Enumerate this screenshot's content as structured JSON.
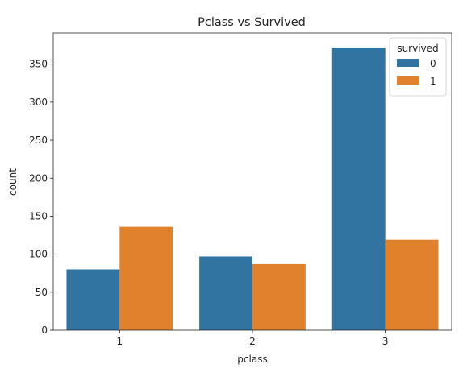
{
  "chart_data": {
    "type": "bar",
    "title": "Pclass vs Survived",
    "xlabel": "pclass",
    "ylabel": "count",
    "categories": [
      "1",
      "2",
      "3"
    ],
    "series": [
      {
        "name": "0",
        "values": [
          80,
          97,
          372
        ],
        "color": "#3274a1"
      },
      {
        "name": "1",
        "values": [
          136,
          87,
          119
        ],
        "color": "#e1812c"
      }
    ],
    "ylim": [
      0,
      391
    ],
    "yticks": [
      0,
      50,
      100,
      150,
      200,
      250,
      300,
      350
    ],
    "legend": {
      "title": "survived",
      "placement": "top-right"
    },
    "grid": false
  }
}
